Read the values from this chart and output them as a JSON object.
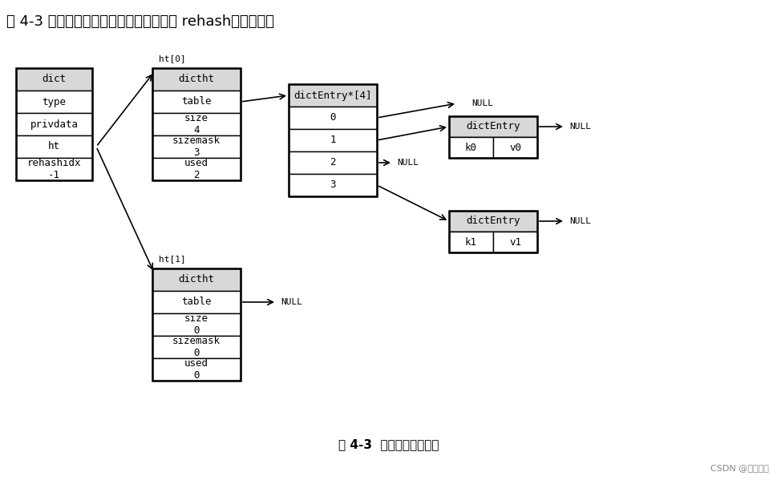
{
  "title_top": "图 4-3 展示了一个普通状态下（没有进行 rehash）的字典。",
  "title_bottom": "图 4-3  普通状态下的字典",
  "watermark": "CSDN @没瓢的瓜",
  "bg_color": "#ffffff",
  "box_fill": "#ffffff",
  "box_edge": "#000000",
  "header_fill": "#d8d8d8",
  "dict_rows": [
    "dict",
    "type",
    "privdata",
    "ht",
    "rehashidx\n-1"
  ],
  "ht0_rows": [
    "dictht",
    "table",
    "size\n4",
    "sizemask\n3",
    "used\n2"
  ],
  "ht1_rows": [
    "dictht",
    "table",
    "size\n0",
    "sizemask\n0",
    "used\n0"
  ],
  "arr_header": "dictEntry*[4]",
  "arr_rows": [
    "0",
    "1",
    "2",
    "3"
  ],
  "entry0_header": "dictEntry",
  "entry0_cells": [
    "k0",
    "v0"
  ],
  "entry1_header": "dictEntry",
  "entry1_cells": [
    "k1",
    "v1"
  ],
  "font_size_title": 13,
  "font_size_cell": 9,
  "font_size_label": 8,
  "font_size_bottom": 11,
  "font_size_watermark": 8
}
